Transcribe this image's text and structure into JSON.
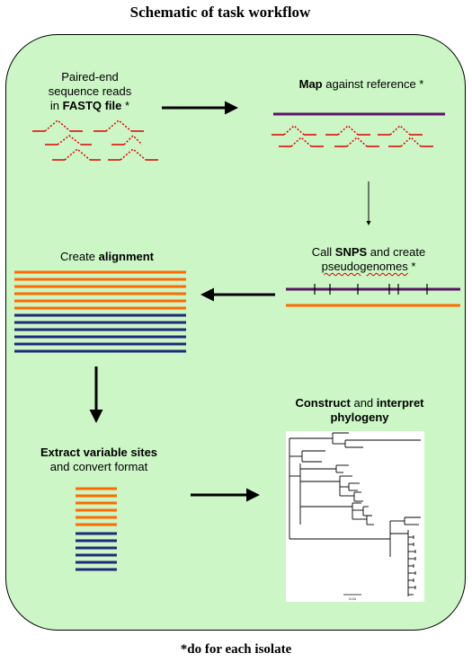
{
  "title": "Schematic of task workflow",
  "footer": "*do for each isolate",
  "steps": {
    "reads": {
      "line1": "Paired-end",
      "line2": "sequence reads",
      "prefix": "in ",
      "bold": "FASTQ file",
      "suffix": " *"
    },
    "map": {
      "bold": "Map",
      "rest": " against reference *"
    },
    "snps": {
      "prefix": "Call ",
      "bold": "SNPS",
      "mid": " and create",
      "line2": "pseudogenomes",
      "suffix": " *"
    },
    "alignment": {
      "prefix": "Create ",
      "bold": "alignment"
    },
    "phylogeny": {
      "bold1": "Construct",
      "mid": " and ",
      "bold2": "interpret",
      "line2": "phylogeny"
    },
    "extract": {
      "bold": "Extract variable sites",
      "line2": "and convert format"
    }
  },
  "tree_scale": "0.04",
  "colors": {
    "panel": "#ccf6c6",
    "read": "#e00000",
    "reference": "#5a1466",
    "orange": "#ff6a00",
    "navy": "#1f2a7a",
    "arrow": "#000000"
  }
}
